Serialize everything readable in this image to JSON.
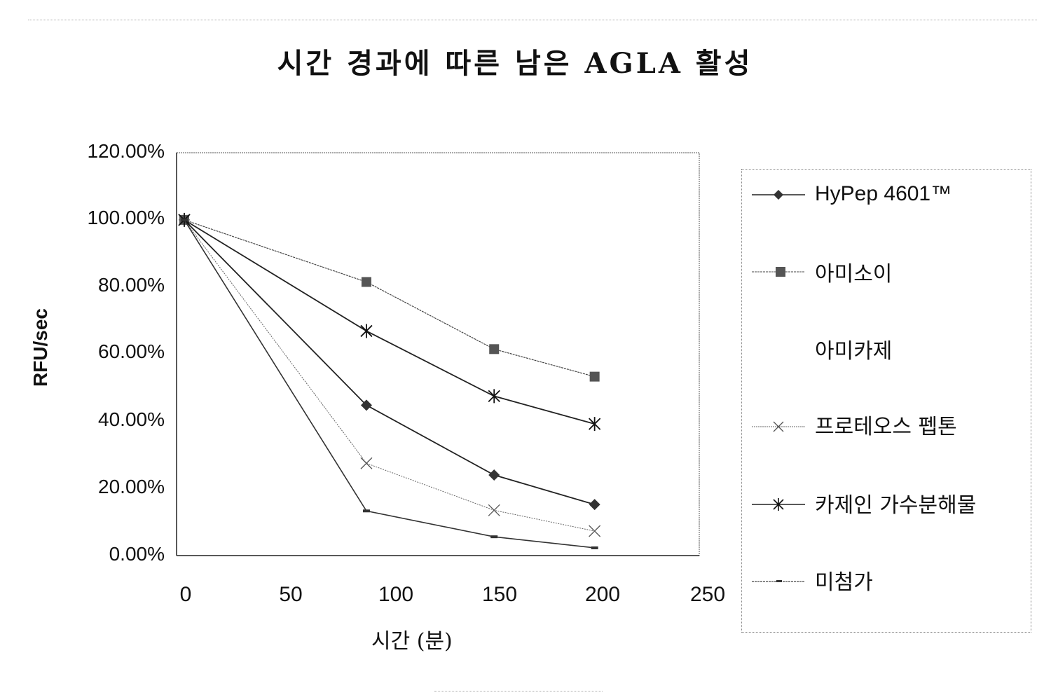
{
  "chart_data": {
    "type": "line",
    "title": "시간 경과에 따른 남은 AGLA 활성",
    "xlabel": "시간 (분)",
    "ylabel": "RFU/sec",
    "xlim": [
      0,
      250
    ],
    "ylim": [
      0,
      1.2
    ],
    "x_ticks": [
      "0",
      "50",
      "100",
      "150",
      "200",
      "250"
    ],
    "y_ticks": [
      "0.00%",
      "20.00%",
      "40.00%",
      "60.00%",
      "80.00%",
      "100.00%",
      "120.00%"
    ],
    "grid": false,
    "legend_position": "right",
    "x": [
      0,
      87,
      148,
      196
    ],
    "series": [
      {
        "name": "HyPep 4601™",
        "marker": "diamond",
        "values": [
          1.0,
          0.448,
          0.24,
          0.152
        ]
      },
      {
        "name": "아미소이",
        "marker": "square",
        "values": [
          1.0,
          0.815,
          0.615,
          0.533
        ]
      },
      {
        "name": "아미카제",
        "marker": "none",
        "values": []
      },
      {
        "name": "프로테오스 펩톤",
        "marker": "x",
        "values": [
          1.0,
          0.275,
          0.135,
          0.073
        ]
      },
      {
        "name": "카제인 가수분해물",
        "marker": "asterisk",
        "values": [
          1.0,
          0.669,
          0.475,
          0.392
        ]
      },
      {
        "name": "미첨가",
        "marker": "dash",
        "values": [
          1.0,
          0.133,
          0.056,
          0.023
        ]
      }
    ]
  },
  "legend": {
    "items": [
      "HyPep 4601™",
      "아미소이",
      "아미카제",
      "프로테오스 펩톤",
      "카제인 가수분해물",
      "미첨가"
    ]
  }
}
